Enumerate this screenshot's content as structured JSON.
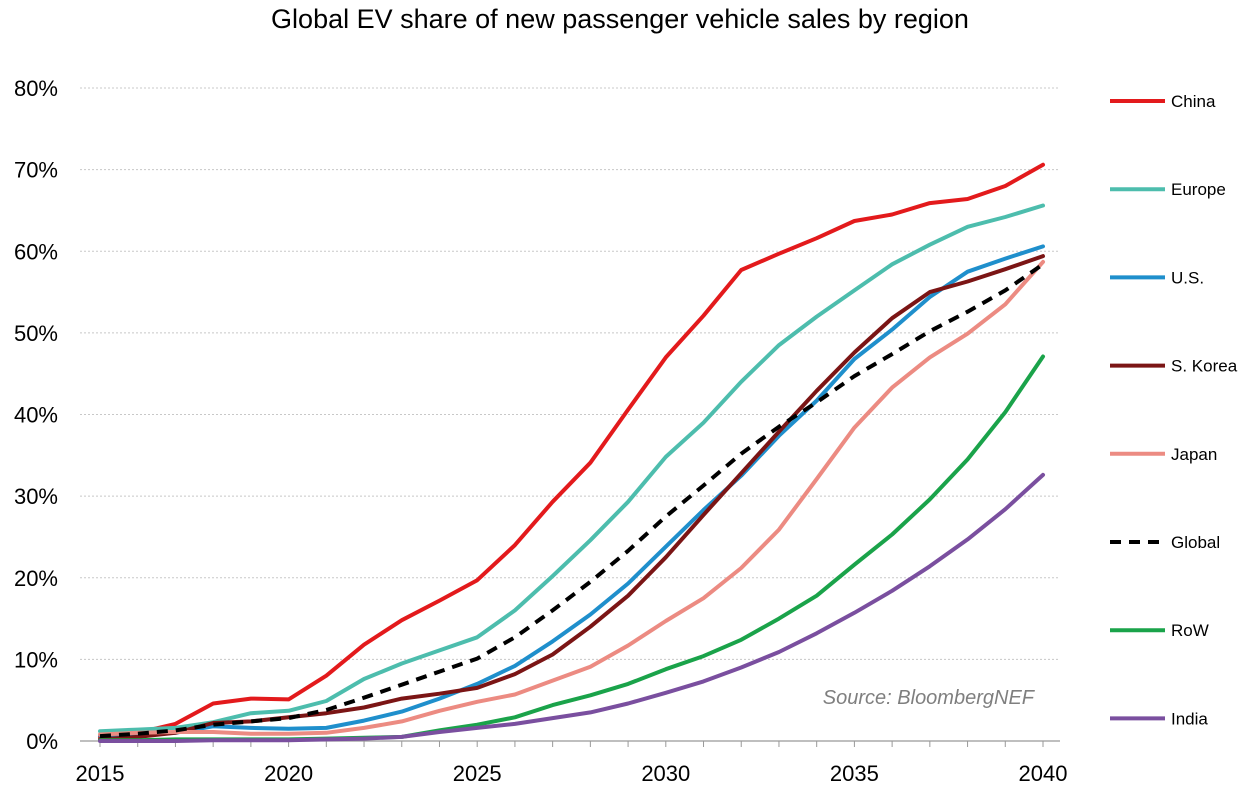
{
  "chart_data": {
    "type": "line",
    "title": "Global EV share of new passenger vehicle sales by region",
    "xlabel": "",
    "ylabel": "",
    "x": [
      2015,
      2016,
      2017,
      2018,
      2019,
      2020,
      2021,
      2022,
      2023,
      2024,
      2025,
      2026,
      2027,
      2028,
      2029,
      2030,
      2031,
      2032,
      2033,
      2034,
      2035,
      2036,
      2037,
      2038,
      2039,
      2040
    ],
    "xlim": [
      2015,
      2040
    ],
    "ylim": [
      0,
      80
    ],
    "x_ticks": [
      "2015",
      "2020",
      "2025",
      "2030",
      "2035",
      "2040"
    ],
    "y_ticks": [
      "0%",
      "10%",
      "20%",
      "30%",
      "40%",
      "50%",
      "60%",
      "70%",
      "80%"
    ],
    "grid": "horizontal",
    "legend_position": "right",
    "annotation": "Source: BloombergNEF",
    "series": [
      {
        "name": "China",
        "color": "#e31a1c",
        "dashed": false,
        "values": [
          0.5,
          1.0,
          2.1,
          4.6,
          5.2,
          5.1,
          8.0,
          11.8,
          14.8,
          17.2,
          19.7,
          24.0,
          29.3,
          34.1,
          40.6,
          47.0,
          52.1,
          57.7,
          59.7,
          61.6,
          63.7,
          64.5,
          65.9,
          66.4,
          68.0,
          70.6
        ]
      },
      {
        "name": "Europe",
        "color": "#4dbdad",
        "dashed": false,
        "values": [
          1.2,
          1.4,
          1.6,
          2.3,
          3.4,
          3.7,
          4.9,
          7.6,
          9.5,
          11.1,
          12.7,
          16.0,
          20.2,
          24.6,
          29.3,
          34.8,
          39.0,
          44.0,
          48.5,
          52.0,
          55.2,
          58.4,
          60.8,
          63.0,
          64.2,
          65.6
        ]
      },
      {
        "name": "U.S.",
        "color": "#1f8fcc",
        "dashed": false,
        "values": [
          0.7,
          0.8,
          1.0,
          1.8,
          1.6,
          1.5,
          1.6,
          2.5,
          3.6,
          5.2,
          7.0,
          9.2,
          12.2,
          15.5,
          19.3,
          23.8,
          28.3,
          32.5,
          37.4,
          41.7,
          46.8,
          50.4,
          54.4,
          57.5,
          59.1,
          60.6
        ]
      },
      {
        "name": "S. Korea",
        "color": "#7b1515",
        "dashed": false,
        "values": [
          0.2,
          0.5,
          1.0,
          2.2,
          2.4,
          2.9,
          3.4,
          4.1,
          5.2,
          5.8,
          6.5,
          8.2,
          10.6,
          14.0,
          17.8,
          22.5,
          27.7,
          32.8,
          37.9,
          42.9,
          47.6,
          51.8,
          55.0,
          56.3,
          57.8,
          59.4
        ]
      },
      {
        "name": "Japan",
        "color": "#ec8b82",
        "dashed": false,
        "values": [
          0.8,
          1.0,
          1.1,
          1.1,
          0.9,
          0.9,
          1.0,
          1.6,
          2.4,
          3.7,
          4.8,
          5.7,
          7.4,
          9.1,
          11.7,
          14.7,
          17.5,
          21.2,
          25.9,
          32.1,
          38.4,
          43.3,
          47.0,
          49.9,
          53.5,
          58.7
        ]
      },
      {
        "name": "Global",
        "color": "#000000",
        "dashed": true,
        "values": [
          0.6,
          0.9,
          1.3,
          2.0,
          2.4,
          2.8,
          3.8,
          5.3,
          6.9,
          8.5,
          10.1,
          12.7,
          16.0,
          19.5,
          23.3,
          27.5,
          31.3,
          35.2,
          38.5,
          41.5,
          44.7,
          47.4,
          50.2,
          52.6,
          55.2,
          58.4
        ]
      },
      {
        "name": "RoW",
        "color": "#1aa34a",
        "dashed": false,
        "values": [
          0.1,
          0.1,
          0.2,
          0.2,
          0.2,
          0.2,
          0.3,
          0.4,
          0.5,
          1.3,
          2.0,
          2.9,
          4.4,
          5.6,
          7.0,
          8.8,
          10.4,
          12.4,
          15.0,
          17.8,
          21.6,
          25.3,
          29.6,
          34.5,
          40.3,
          47.1
        ]
      },
      {
        "name": "India",
        "color": "#7a4f9f",
        "dashed": false,
        "values": [
          0.0,
          0.0,
          0.0,
          0.1,
          0.1,
          0.1,
          0.2,
          0.3,
          0.5,
          1.1,
          1.6,
          2.1,
          2.8,
          3.5,
          4.6,
          5.9,
          7.3,
          9.0,
          10.9,
          13.2,
          15.7,
          18.4,
          21.4,
          24.7,
          28.4,
          32.6
        ]
      }
    ]
  }
}
